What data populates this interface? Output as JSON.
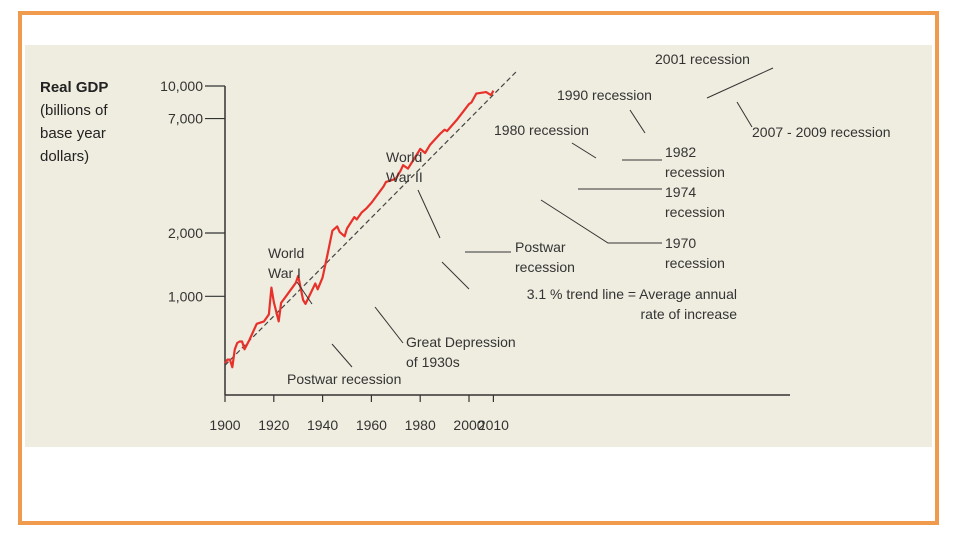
{
  "chart_data": {
    "type": "line",
    "title": "",
    "ylabel_title": "Real GDP",
    "ylabel_lines": [
      "(billions of",
      "base year",
      "dollars)"
    ],
    "xlabel": "",
    "x_ticks": [
      "1900",
      "1920",
      "1940",
      "1960",
      "1980",
      "2000",
      "2010"
    ],
    "x_tick_values": [
      1900,
      1920,
      1940,
      1960,
      1980,
      2000,
      2010
    ],
    "y_ticks": [
      "1,000",
      "2,000",
      "7,000",
      "10,000"
    ],
    "y_tick_values": [
      1000,
      2000,
      7000,
      10000
    ],
    "y_scale": "log",
    "xlim": [
      1900,
      2030
    ],
    "ylim": [
      400,
      10000
    ],
    "series": [
      {
        "name": "",
        "color": "#e8312a",
        "x": [
          1900,
          1901,
          1902,
          1903,
          1904,
          1905,
          1906,
          1907,
          1908,
          1910,
          1913,
          1916,
          1918,
          1919,
          1920,
          1922,
          1923,
          1925,
          1929,
          1930,
          1932,
          1933,
          1937,
          1938,
          1940,
          1942,
          1944,
          1946,
          1947,
          1949,
          1950,
          1953,
          1954,
          1956,
          1958,
          1960,
          1965,
          1966,
          1970,
          1972,
          1973,
          1975,
          1979,
          1980,
          1982,
          1984,
          1988,
          1990,
          1991,
          1995,
          2000,
          2001,
          2003,
          2007,
          2009,
          2010
        ],
        "y": [
          480,
          500,
          500,
          460,
          560,
          600,
          610,
          610,
          560,
          620,
          740,
          760,
          820,
          1100,
          940,
          760,
          930,
          1000,
          1160,
          1250,
          960,
          920,
          1150,
          1080,
          1230,
          1580,
          2050,
          2150,
          2020,
          1930,
          2100,
          2380,
          2320,
          2500,
          2620,
          2780,
          3330,
          3500,
          3620,
          3970,
          4200,
          4050,
          4800,
          5020,
          4800,
          5250,
          5900,
          6200,
          6100,
          6900,
          8200,
          8350,
          9200,
          9350,
          9050,
          9500
        ]
      },
      {
        "name": "3.1 % trend line = Average annual rate of increase",
        "color": "#444444",
        "style": "dashed",
        "x": [
          1900,
          2020
        ],
        "y": [
          470,
          11900
        ]
      }
    ],
    "annotations": [
      {
        "label": "2001 recession",
        "year": 2001
      },
      {
        "label": "1990 recession",
        "year": 1990
      },
      {
        "label": "1980 recession",
        "year": 1980
      },
      {
        "label": "2007 - 2009 recession",
        "year": 2008
      },
      {
        "label": "1982 recession",
        "year": 1982
      },
      {
        "label": "1974 recession",
        "year": 1974
      },
      {
        "label": "1970 recession",
        "year": 1970
      },
      {
        "label": "World War II",
        "year": 1944
      },
      {
        "label": "World War I",
        "year": 1918
      },
      {
        "label": "Postwar recession",
        "year": 1948
      },
      {
        "label": "3.1 % trend line = Average annual rate of increase",
        "year": 1950
      },
      {
        "label": "Great Depression of 1930s",
        "year": 1932
      },
      {
        "label": "Postwar recession",
        "year": 1921
      }
    ],
    "grid": false,
    "legend": "none"
  }
}
